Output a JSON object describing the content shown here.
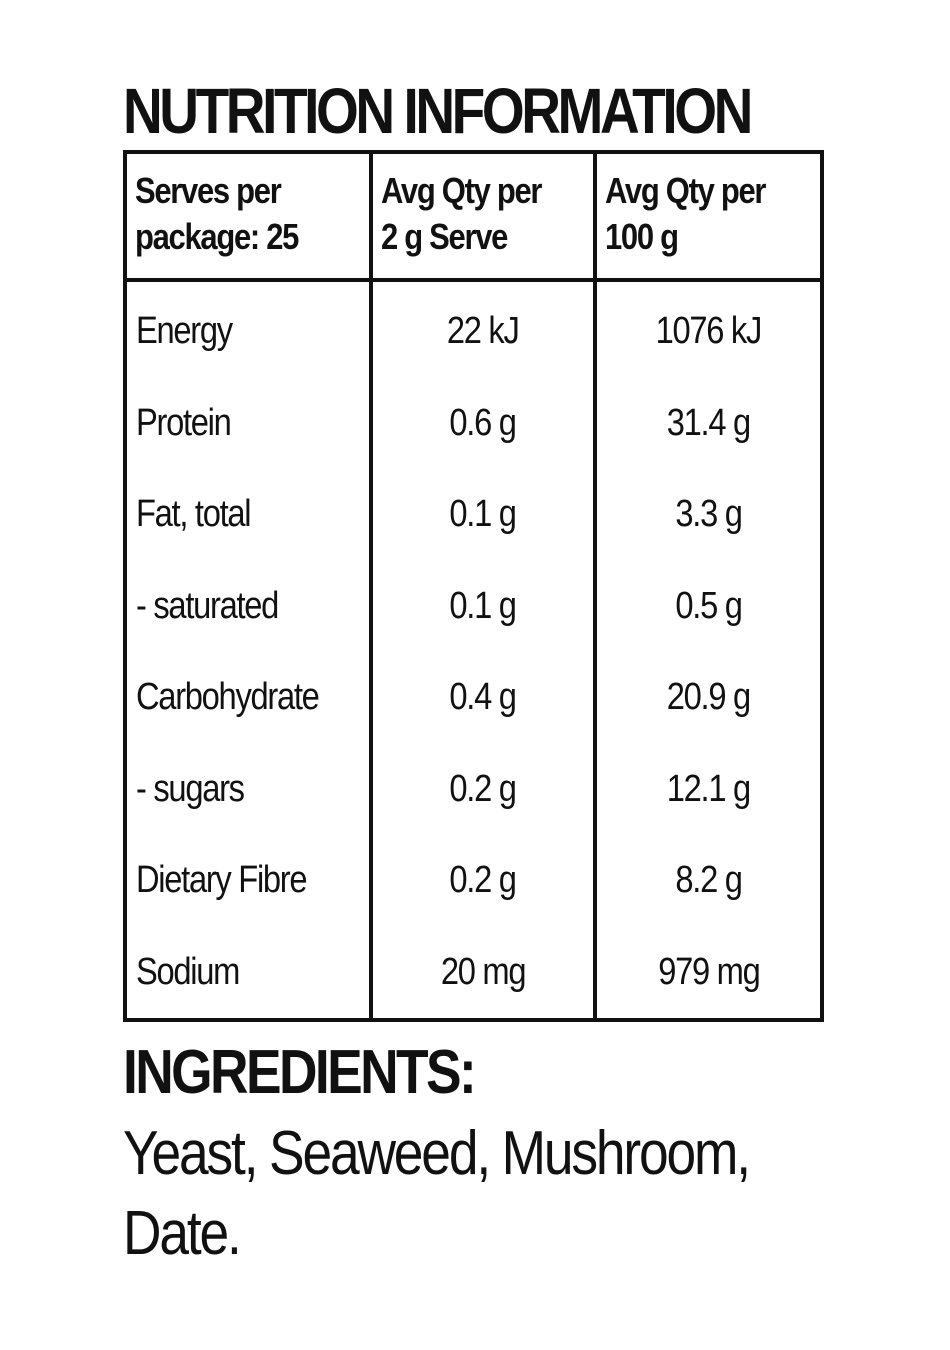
{
  "title": "NUTRITION INFORMATION",
  "table": {
    "headers": [
      [
        "Serves per",
        "package: 25"
      ],
      [
        "Avg Qty per",
        "2 g Serve"
      ],
      [
        "Avg Qty per",
        "100 g"
      ]
    ],
    "rows": [
      {
        "label": "Energy",
        "per_serve": "22 kJ",
        "per_100g": "1076 kJ"
      },
      {
        "label": "Protein",
        "per_serve": "0.6 g",
        "per_100g": "31.4 g"
      },
      {
        "label": "Fat, total",
        "per_serve": "0.1 g",
        "per_100g": "3.3 g"
      },
      {
        "label": "- saturated",
        "per_serve": "0.1 g",
        "per_100g": "0.5 g"
      },
      {
        "label": "Carbohydrate",
        "per_serve": "0.4 g",
        "per_100g": "20.9 g"
      },
      {
        "label": "- sugars",
        "per_serve": "0.2 g",
        "per_100g": "12.1 g"
      },
      {
        "label": "Dietary Fibre",
        "per_serve": "0.2 g",
        "per_100g": "8.2 g"
      },
      {
        "label": "Sodium",
        "per_serve": "20 mg",
        "per_100g": "979 mg"
      }
    ]
  },
  "ingredients": {
    "heading": "INGREDIENTS:",
    "text": "Yeast, Seaweed, Mushroom, Date."
  }
}
